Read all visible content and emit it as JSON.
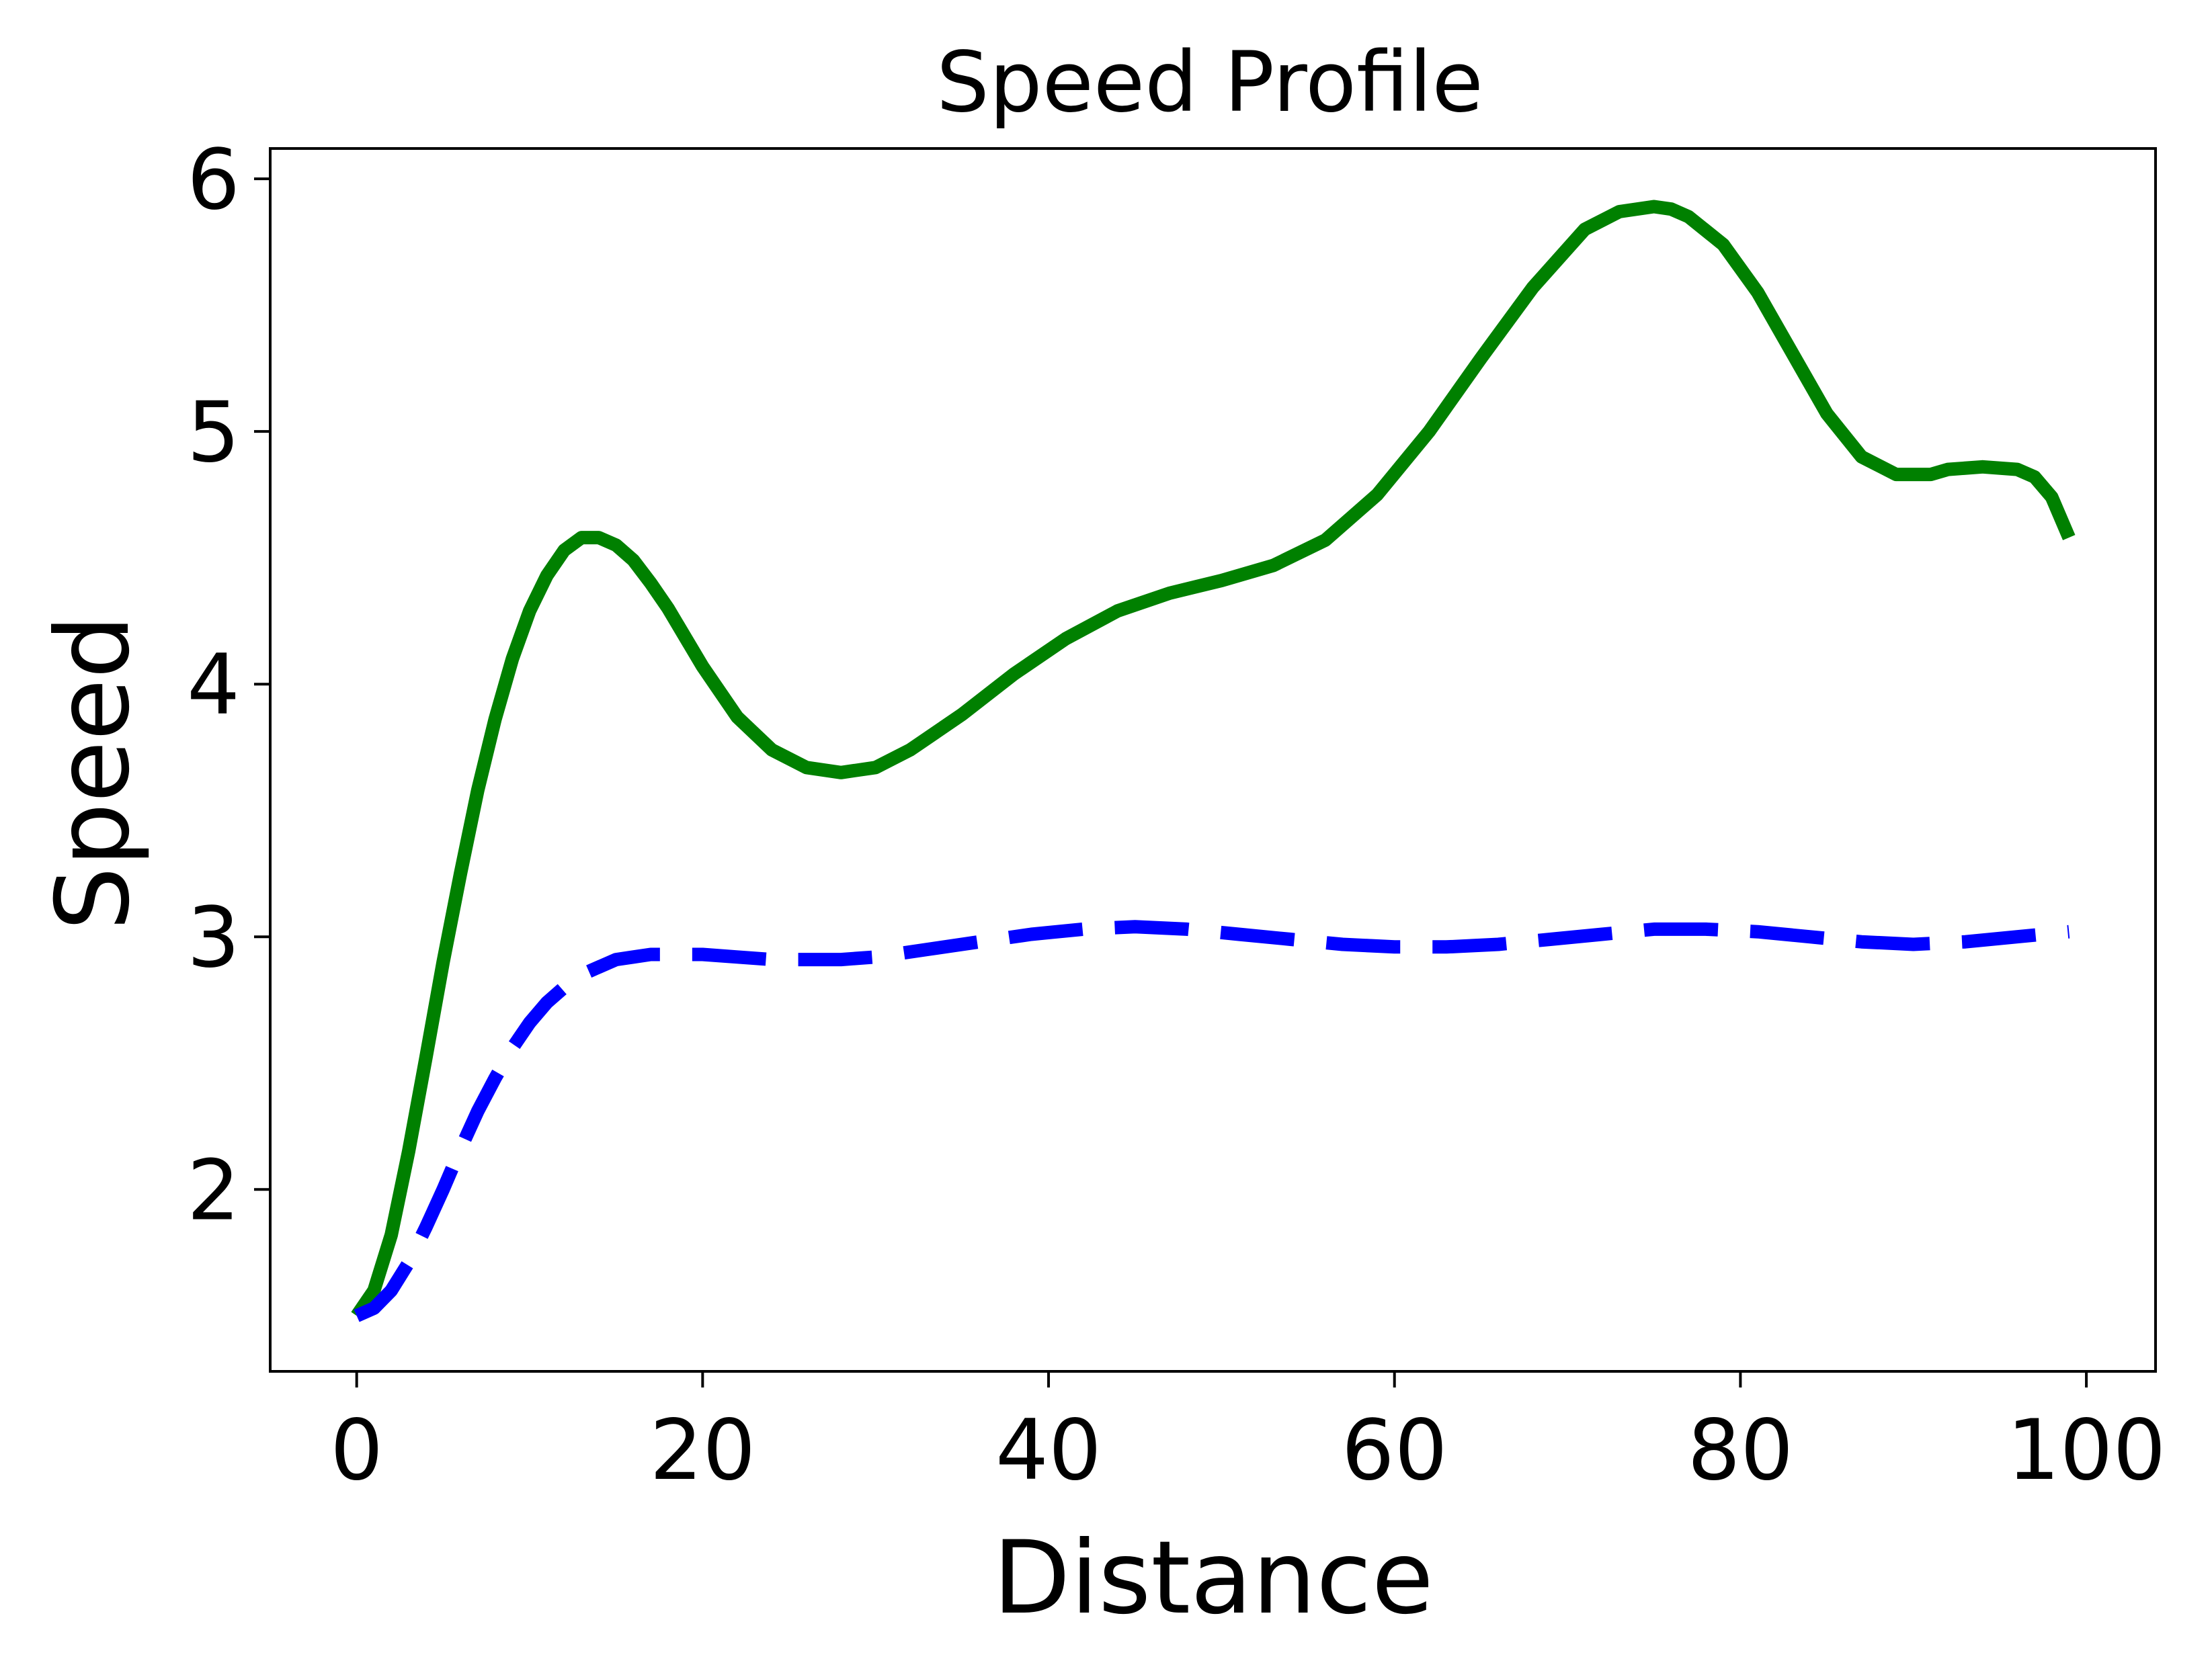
{
  "chart_data": {
    "type": "line",
    "title": "Speed Profile",
    "xlabel": "Distance",
    "ylabel": "Speed",
    "xlim": [
      -5,
      104
    ],
    "ylim": [
      1.28,
      6.12
    ],
    "xticks": [
      0,
      20,
      40,
      60,
      80,
      100
    ],
    "yticks": [
      2,
      3,
      4,
      5,
      6
    ],
    "grid": false,
    "legend": "none",
    "series": [
      {
        "color": "#008000",
        "style": "solid",
        "x": [
          0,
          1,
          2,
          3,
          4,
          5,
          6,
          7,
          8,
          9,
          10,
          11,
          12,
          13,
          14,
          15,
          16,
          17,
          18,
          20,
          22,
          24,
          26,
          28,
          30,
          32,
          35,
          38,
          41,
          44,
          47,
          50,
          53,
          56,
          59,
          62,
          65,
          68,
          71,
          73,
          75,
          76,
          77,
          79,
          81,
          83,
          85,
          87,
          89,
          91,
          92,
          94,
          96,
          97,
          98,
          99
        ],
        "y": [
          1.5,
          1.6,
          1.82,
          2.15,
          2.52,
          2.9,
          3.25,
          3.58,
          3.86,
          4.1,
          4.29,
          4.43,
          4.53,
          4.58,
          4.58,
          4.55,
          4.49,
          4.4,
          4.3,
          4.07,
          3.87,
          3.74,
          3.67,
          3.65,
          3.67,
          3.74,
          3.88,
          4.04,
          4.18,
          4.29,
          4.36,
          4.41,
          4.47,
          4.57,
          4.75,
          5.0,
          5.29,
          5.57,
          5.8,
          5.87,
          5.89,
          5.88,
          5.85,
          5.74,
          5.55,
          5.31,
          5.07,
          4.9,
          4.83,
          4.83,
          4.85,
          4.86,
          4.85,
          4.82,
          4.74,
          4.58
        ]
      },
      {
        "color": "#0000ff",
        "style": "dashed",
        "x": [
          0,
          1,
          2,
          3,
          4,
          5,
          6,
          7,
          8,
          9,
          10,
          11,
          12,
          13,
          14,
          15,
          16,
          17,
          18,
          20,
          22,
          24,
          26,
          28,
          30,
          33,
          36,
          39,
          42,
          45,
          48,
          51,
          54,
          57,
          60,
          63,
          66,
          69,
          72,
          75,
          78,
          81,
          84,
          87,
          90,
          93,
          96,
          99
        ],
        "y": [
          1.5,
          1.53,
          1.6,
          1.71,
          1.85,
          2.0,
          2.16,
          2.31,
          2.44,
          2.56,
          2.66,
          2.74,
          2.8,
          2.85,
          2.88,
          2.91,
          2.92,
          2.93,
          2.93,
          2.93,
          2.92,
          2.91,
          2.91,
          2.91,
          2.92,
          2.95,
          2.98,
          3.01,
          3.03,
          3.04,
          3.03,
          3.01,
          2.99,
          2.97,
          2.96,
          2.96,
          2.97,
          2.99,
          3.01,
          3.03,
          3.03,
          3.02,
          3.0,
          2.98,
          2.97,
          2.98,
          3.0,
          3.02
        ]
      }
    ]
  }
}
